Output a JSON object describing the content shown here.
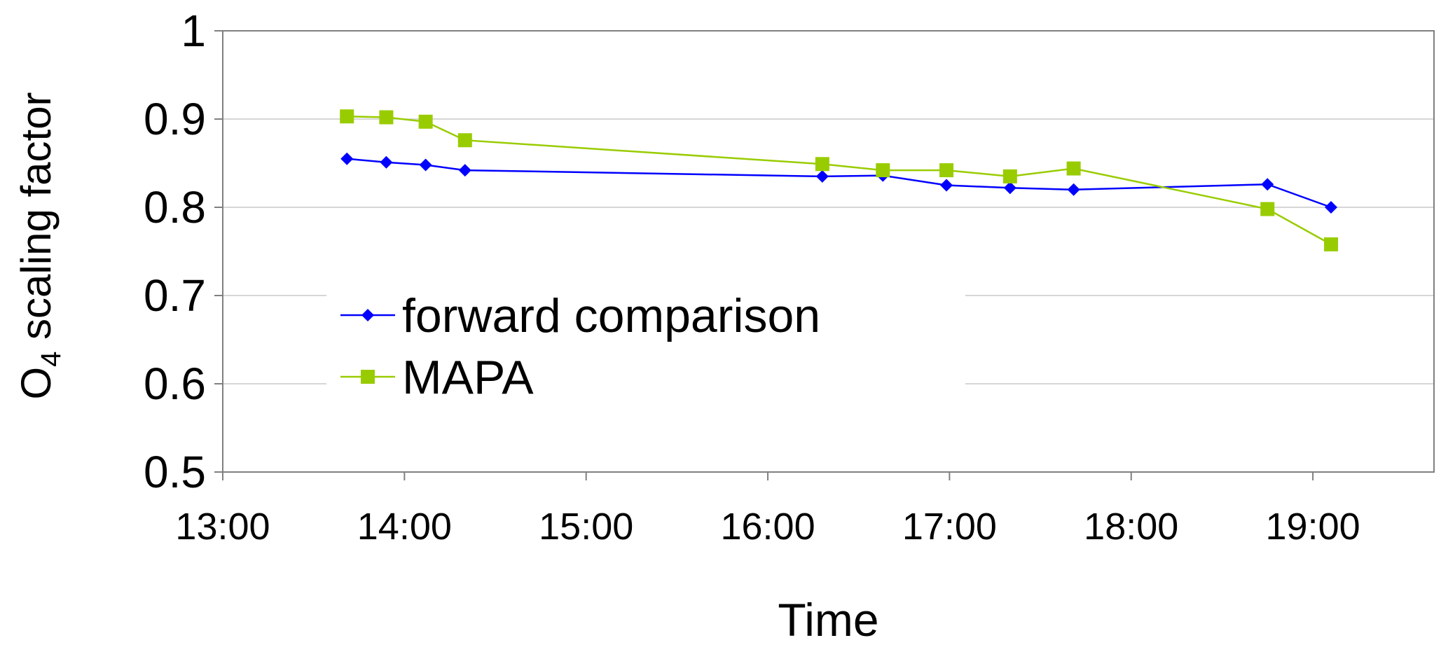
{
  "chart_data": {
    "type": "line",
    "xlabel": "Time",
    "ylabel_main": "O",
    "ylabel_sub": "4",
    "ylabel_rest": " scaling factor",
    "xlim": [
      "13:00",
      "19:40"
    ],
    "ylim": [
      0.5,
      1.0
    ],
    "x_ticks": [
      "13:00",
      "14:00",
      "15:00",
      "16:00",
      "17:00",
      "18:00",
      "19:00"
    ],
    "y_ticks": [
      "0.5",
      "0.6",
      "0.7",
      "0.8",
      "0.9",
      "1"
    ],
    "grid": "horizontal",
    "legend_position": "center-left",
    "series": [
      {
        "name": "forward comparison",
        "color": "#0000ff",
        "marker": "diamond",
        "x": [
          "13:41",
          "13:54",
          "14:07",
          "14:20",
          "16:18",
          "16:38",
          "16:59",
          "17:20",
          "17:41",
          "18:45",
          "19:06"
        ],
        "y": [
          0.855,
          0.851,
          0.848,
          0.842,
          0.835,
          0.836,
          0.825,
          0.822,
          0.82,
          0.826,
          0.8
        ]
      },
      {
        "name": "MAPA",
        "color": "#99cc00",
        "marker": "square",
        "x": [
          "13:41",
          "13:54",
          "14:07",
          "14:20",
          "16:18",
          "16:38",
          "16:59",
          "17:20",
          "17:41",
          "18:45",
          "19:06"
        ],
        "y": [
          0.903,
          0.902,
          0.897,
          0.876,
          0.849,
          0.842,
          0.842,
          0.835,
          0.844,
          0.798,
          0.758
        ]
      }
    ]
  }
}
